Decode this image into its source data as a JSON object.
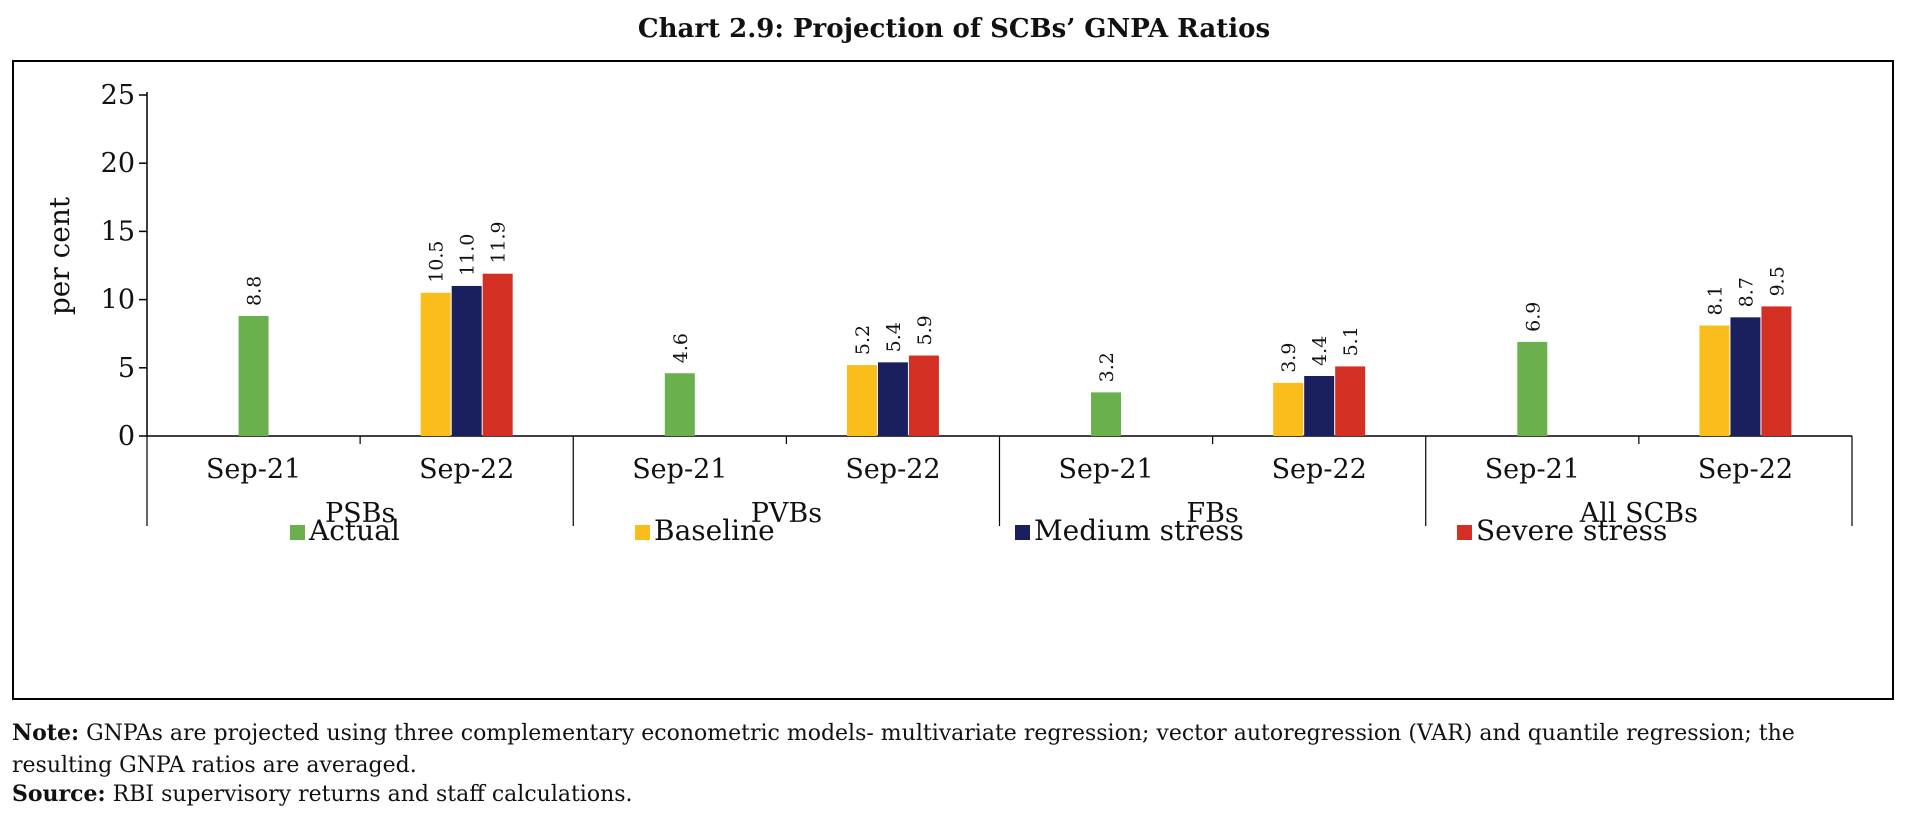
{
  "title": "Chart 2.9:  Projection of SCBs’ GNPA Ratios",
  "note": {
    "label": "Note:",
    "text": "GNPAs are projected using three complementary econometric models- multivariate regression; vector autoregression (VAR) and quantile regression; the resulting GNPA ratios are averaged."
  },
  "source": {
    "label": "Source:",
    "text": "RBI supervisory returns and staff calculations."
  },
  "chart_data": {
    "type": "bar",
    "ylabel": "per cent",
    "ylim": [
      0,
      25
    ],
    "yticks": [
      0,
      5,
      10,
      15,
      20,
      25
    ],
    "groups": [
      {
        "name": "PSBs",
        "categories": [
          {
            "label": "Sep-21",
            "bars": [
              {
                "series": "Actual",
                "value": 8.8
              }
            ]
          },
          {
            "label": "Sep-22",
            "bars": [
              {
                "series": "Baseline",
                "value": 10.5
              },
              {
                "series": "Medium stress",
                "value": 11.0
              },
              {
                "series": "Severe stress",
                "value": 11.9
              }
            ]
          }
        ]
      },
      {
        "name": "PVBs",
        "categories": [
          {
            "label": "Sep-21",
            "bars": [
              {
                "series": "Actual",
                "value": 4.6
              }
            ]
          },
          {
            "label": "Sep-22",
            "bars": [
              {
                "series": "Baseline",
                "value": 5.2
              },
              {
                "series": "Medium stress",
                "value": 5.4
              },
              {
                "series": "Severe stress",
                "value": 5.9
              }
            ]
          }
        ]
      },
      {
        "name": "FBs",
        "categories": [
          {
            "label": "Sep-21",
            "bars": [
              {
                "series": "Actual",
                "value": 3.2
              }
            ]
          },
          {
            "label": "Sep-22",
            "bars": [
              {
                "series": "Baseline",
                "value": 3.9
              },
              {
                "series": "Medium stress",
                "value": 4.4
              },
              {
                "series": "Severe stress",
                "value": 5.1
              }
            ]
          }
        ]
      },
      {
        "name": "All SCBs",
        "categories": [
          {
            "label": "Sep-21",
            "bars": [
              {
                "series": "Actual",
                "value": 6.9
              }
            ]
          },
          {
            "label": "Sep-22",
            "bars": [
              {
                "series": "Baseline",
                "value": 8.1
              },
              {
                "series": "Medium stress",
                "value": 8.7
              },
              {
                "series": "Severe stress",
                "value": 9.5
              }
            ]
          }
        ]
      }
    ],
    "series": [
      {
        "name": "Actual",
        "color": "#6ab04c"
      },
      {
        "name": "Baseline",
        "color": "#fbbd1c"
      },
      {
        "name": "Medium stress",
        "color": "#1a1f5e"
      },
      {
        "name": "Severe stress",
        "color": "#d32f23"
      }
    ],
    "legend_position": "bottom",
    "grid": false
  }
}
